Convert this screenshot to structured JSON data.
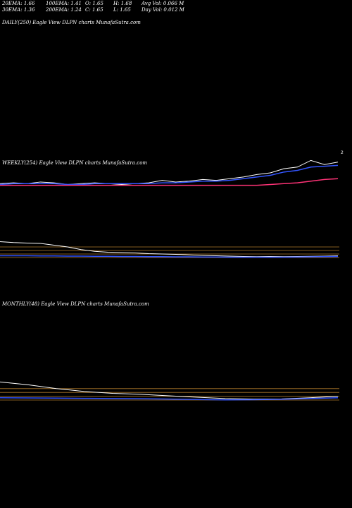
{
  "header": {
    "row1": [
      "20EMA: 1.66",
      "100EMA: 1.41",
      "O: 1.65",
      "H: 1.68",
      "Avg Vol: 0.066  M"
    ],
    "row2": [
      "30EMA: 1.36",
      "200EMA: 1.24",
      "C: 1.65",
      "L: 1.65",
      "Day Vol: 0.012  M"
    ]
  },
  "panels": {
    "daily": {
      "title": "DAILY(250) Eagle   View  DLPN  charts MunafaSutra.com"
    },
    "weekly": {
      "title": "WEEKLY(254) Eagle   View  DLPN  charts MunafaSutra.com",
      "tick": "2"
    },
    "monthly": {
      "title": "MONTHLY(48) Eagle   View  DLPN  charts MunafaSutra.com"
    }
  },
  "chart_data": [
    {
      "type": "line",
      "name": "weekly-price",
      "x": [
        0,
        10,
        20,
        30,
        40,
        50,
        60,
        70,
        80,
        90,
        100,
        110,
        120,
        130,
        140,
        150,
        160,
        170,
        180,
        190,
        200,
        210,
        220,
        230,
        240,
        250
      ],
      "series": [
        {
          "color": "#ffffff",
          "values": [
            1.02,
            1.03,
            1.02,
            1.04,
            1.03,
            1.01,
            1.02,
            1.03,
            1.02,
            1.01,
            1.02,
            1.03,
            1.06,
            1.04,
            1.05,
            1.07,
            1.06,
            1.08,
            1.1,
            1.13,
            1.15,
            1.2,
            1.22,
            1.3,
            1.25,
            1.28
          ]
        },
        {
          "color": "#3355ff",
          "values": [
            1.01,
            1.02,
            1.02,
            1.02,
            1.02,
            1.01,
            1.01,
            1.02,
            1.02,
            1.02,
            1.02,
            1.02,
            1.03,
            1.03,
            1.04,
            1.05,
            1.05,
            1.06,
            1.08,
            1.1,
            1.12,
            1.16,
            1.18,
            1.22,
            1.23,
            1.24
          ]
        },
        {
          "color": "#ff3377",
          "values": [
            1.0,
            1.0,
            1.0,
            1.0,
            1.0,
            1.0,
            1.0,
            1.0,
            1.0,
            1.0,
            1.0,
            1.0,
            1.0,
            1.0,
            1.0,
            1.0,
            1.0,
            1.0,
            1.0,
            1.0,
            1.01,
            1.02,
            1.03,
            1.05,
            1.07,
            1.08
          ]
        }
      ]
    },
    {
      "type": "line",
      "name": "weekly-indicator",
      "x": [
        0,
        10,
        20,
        30,
        40,
        50,
        60,
        70,
        80,
        90,
        100,
        110,
        120,
        130,
        140,
        150,
        160,
        170,
        180,
        190,
        200,
        210,
        220,
        230,
        240,
        250
      ],
      "series": [
        {
          "color": "#ffffff",
          "values": [
            0.9,
            0.85,
            0.82,
            0.8,
            0.7,
            0.6,
            0.45,
            0.35,
            0.3,
            0.28,
            0.26,
            0.22,
            0.2,
            0.18,
            0.15,
            0.12,
            0.1,
            0.08,
            0.06,
            0.05,
            0.06,
            0.05,
            0.06,
            0.07,
            0.08,
            0.1
          ]
        },
        {
          "color": "#3355ff",
          "values": [
            0.1,
            0.1,
            0.1,
            0.09,
            0.09,
            0.08,
            0.08,
            0.07,
            0.07,
            0.06,
            0.06,
            0.05,
            0.05,
            0.04,
            0.04,
            0.03,
            0.03,
            0.02,
            0.02,
            0.02,
            0.02,
            0.02,
            0.03,
            0.04,
            0.05,
            0.06
          ]
        }
      ],
      "reference_lines": [
        0.0,
        0.2,
        0.4,
        0.6
      ]
    },
    {
      "type": "line",
      "name": "monthly-indicator",
      "x": [
        0,
        4,
        8,
        12,
        16,
        20,
        24,
        28,
        32,
        36,
        40,
        44,
        48
      ],
      "series": [
        {
          "color": "#ffffff",
          "values": [
            0.95,
            0.8,
            0.6,
            0.45,
            0.35,
            0.3,
            0.22,
            0.15,
            0.08,
            0.05,
            0.06,
            0.12,
            0.2
          ]
        },
        {
          "color": "#3355ff",
          "values": [
            0.12,
            0.11,
            0.1,
            0.09,
            0.08,
            0.07,
            0.05,
            0.03,
            0.01,
            0.02,
            0.04,
            0.08,
            0.12
          ]
        }
      ],
      "reference_lines": [
        0.0,
        0.2,
        0.4,
        0.6
      ]
    }
  ]
}
